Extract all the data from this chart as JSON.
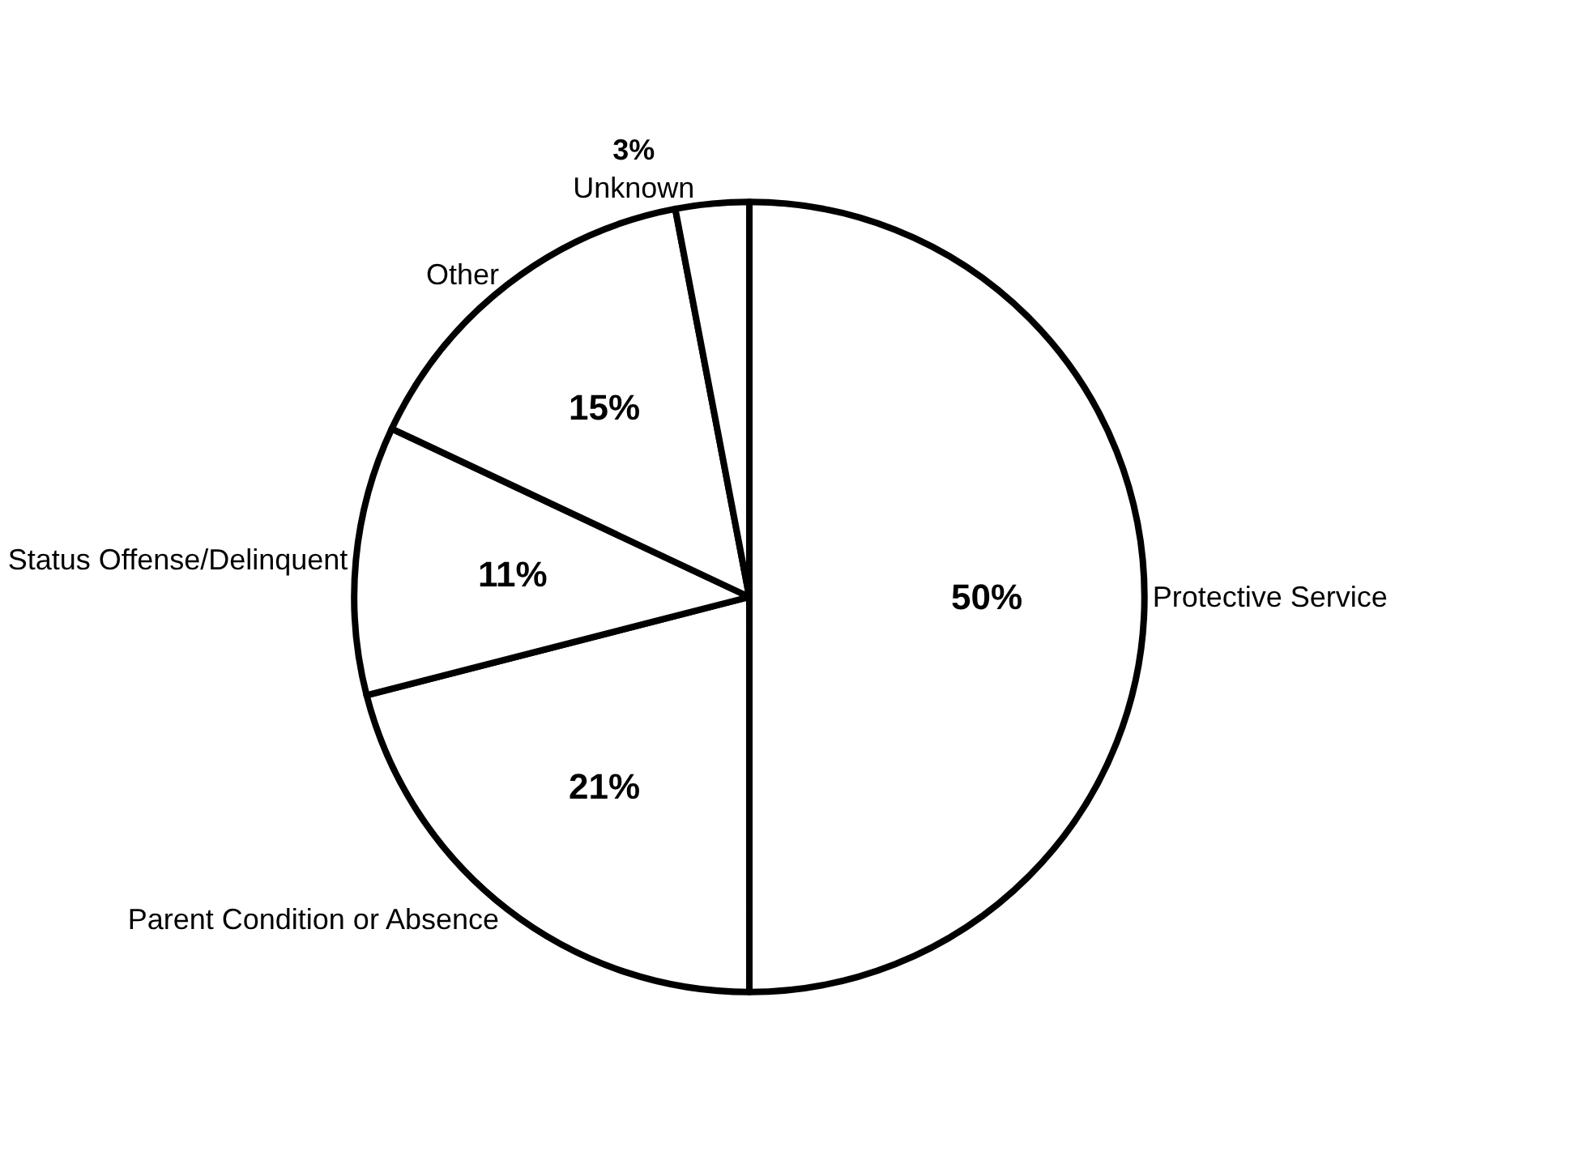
{
  "chart_data": {
    "type": "pie",
    "categories": [
      "Protective Service",
      "Parent Condition or Absence",
      "Status Offense/Delinquent",
      "Other",
      "Unknown"
    ],
    "values": [
      50,
      21,
      11,
      15,
      3
    ],
    "value_labels": [
      "50%",
      "21%",
      "11%",
      "15%",
      "3%"
    ],
    "colors": [
      "#ffffff",
      "#ffffff",
      "#ffffff",
      "#ffffff",
      "#ffffff"
    ],
    "legend": false
  }
}
